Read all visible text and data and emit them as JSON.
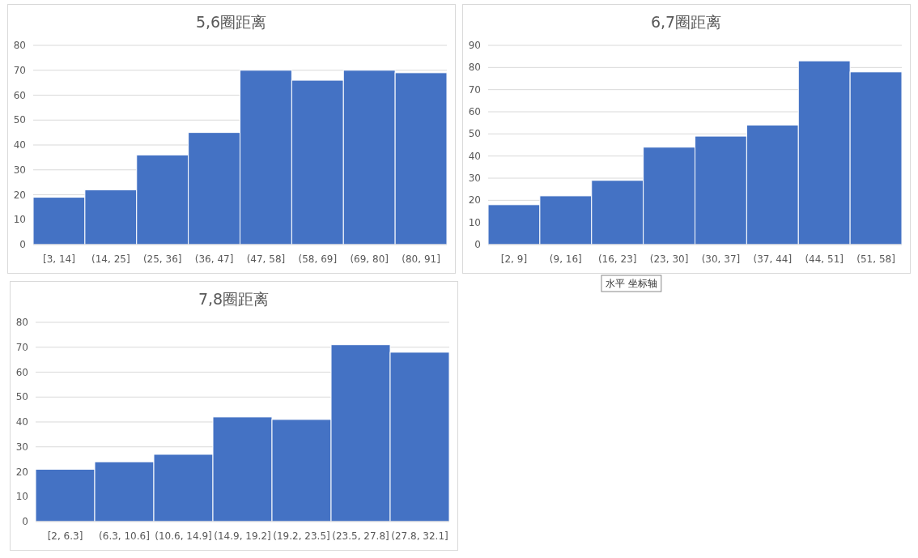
{
  "chart_data": [
    {
      "type": "bar",
      "title": "5,6圈距离",
      "categories": [
        "[3, 14]",
        "(14, 25]",
        "(25, 36]",
        "(36, 47]",
        "(47, 58]",
        "(58, 69]",
        "(69, 80]",
        "(80, 91]"
      ],
      "values": [
        19,
        22,
        36,
        45,
        70,
        66,
        70,
        69
      ],
      "color": "#4472c4",
      "ylim": [
        0,
        80
      ],
      "yticks": [
        0,
        10,
        20,
        30,
        40,
        50,
        60,
        70,
        80
      ],
      "grid": "y"
    },
    {
      "type": "bar",
      "title": "6,7圈距离",
      "categories": [
        "[2, 9]",
        "(9, 16]",
        "(16, 23]",
        "(23, 30]",
        "(30, 37]",
        "(37, 44]",
        "(44, 51]",
        "(51, 58]"
      ],
      "values": [
        18,
        22,
        29,
        44,
        49,
        54,
        83,
        78
      ],
      "color": "#4472c4",
      "ylim": [
        0,
        90
      ],
      "yticks": [
        0,
        10,
        20,
        30,
        40,
        50,
        60,
        70,
        80,
        90
      ],
      "grid": "y",
      "annotations": [
        "水平 坐标轴"
      ]
    },
    {
      "type": "bar",
      "title": "7,8圈距离",
      "categories": [
        "[2, 6.3]",
        "(6.3, 10.6]",
        "(10.6, 14.9]",
        "(14.9, 19.2]",
        "(19.2, 23.5]",
        "(23.5, 27.8]",
        "(27.8, 32.1]"
      ],
      "values": [
        21,
        24,
        27,
        42,
        41,
        71,
        68
      ],
      "color": "#4472c4",
      "ylim": [
        0,
        80
      ],
      "yticks": [
        0,
        10,
        20,
        30,
        40,
        50,
        60,
        70,
        80
      ],
      "grid": "y"
    }
  ]
}
